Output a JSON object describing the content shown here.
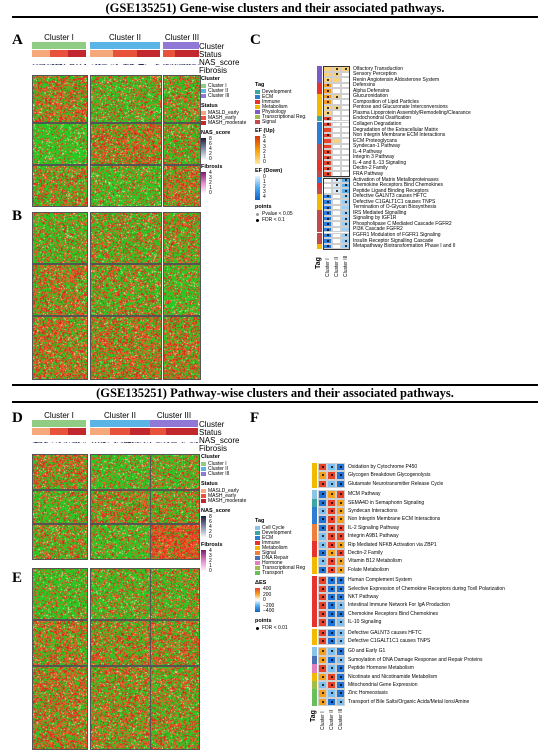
{
  "titles": {
    "top": "(GSE135251) Gene-wise clusters and their associated pathways.",
    "bottom": "(GSE135251) Pathway-wise clusters and their associated pathways."
  },
  "panels": {
    "a": "A",
    "b": "B",
    "c": "C",
    "d": "D",
    "e": "E",
    "f": "F"
  },
  "annotation_rows": {
    "cluster": "Cluster",
    "status": "Status",
    "nas": "NAS_score",
    "fibrosis": "Fibrosis"
  },
  "clusters": {
    "c1": "Cluster I",
    "c2": "Cluster II",
    "c3": "Cluster III"
  },
  "legend": {
    "cluster_title": "Cluster",
    "cluster_items": [
      "Cluster I",
      "Cluster II",
      "Cluster III"
    ],
    "status_title": "Status",
    "status_items": [
      "MASLD_early",
      "MASH_early",
      "MASH_moderate"
    ],
    "nas_title": "NAS_score",
    "nas_ticks": [
      "8",
      "6",
      "4",
      "2",
      "0"
    ],
    "fib_title": "Fibrosis",
    "fib_ticks": [
      "4",
      "3",
      "2",
      "1",
      "0"
    ]
  },
  "colors": {
    "c1": "#90cc84",
    "c2": "#5bb4e6",
    "c3": "#8f78d6",
    "s1": "#f5a97a",
    "s2": "#e8523a",
    "s3": "#c1272d",
    "green": "#22cc22",
    "red": "#e02020"
  },
  "c_legend": {
    "tag_title": "Tag",
    "tags": [
      "Development",
      "ECM",
      "Immune",
      "Metabolism",
      "Physiology",
      "Transcriptional Reg.",
      "Signal"
    ],
    "ef_up_title": "EF (Up)",
    "ef_up_ticks": [
      "5",
      "4",
      "3",
      "2",
      "1",
      "0"
    ],
    "ef_down_title": "EF (Down)",
    "ef_down_ticks": [
      "0",
      "1",
      "2",
      "3",
      "4"
    ],
    "points_title": "points",
    "points": [
      "Pvalue < 0.05",
      "FDR < 0.1"
    ],
    "x_labels": [
      "Cluster I",
      "Cluster II",
      "Cluster III"
    ],
    "tag_axis": "Tag"
  },
  "c_paths": [
    "Olfactory Transduction",
    "Sensory Perception",
    "Renin Angiotensin Aldosterone System",
    "Defensins",
    "Alpha Defensins",
    "Glucuronidation",
    "Composition of Lipid Particles",
    "Pentose and Glucuronate Interconversions",
    "Plasma Lipoprotein Assembly/Remodeling/Clearance",
    "Endochondral Ossification",
    "Collagen Degradation",
    "Degradation of the Extracellular Matrix",
    "Non Integrin Membrane ECM Interactions",
    "ECM Proteoglycans",
    "Syndecan-1 Pathway",
    "IL-4 Pathway",
    "Integrin 3 Pathway",
    "IL-4 and IL-13 Signaling",
    "Dectin-2 Family",
    "FRA Pathway",
    "Activation of Matrix Metalloproteinases",
    "Chemokine Receptors Bind Chemokines",
    "Peptide Ligand Binding Receptors",
    "Defective GALNT3 causes HFTC",
    "Defective C1GALT1C1 causes TNPS",
    "Termination of O-Glycan Biosynthesis",
    "IRS Mediated Signalling",
    "Signaling by IGF1R",
    "Phospholipase C Mediated Cascade FGFR2",
    "PI3K Cascade FGFR2",
    "FGFR1 Modulation of FGFR1 Signaling",
    "Insulin Receptor Signalling Cascade",
    "Metapathway Biotransformation Phase I and II"
  ],
  "f_legend": {
    "tag_title": "Tag",
    "tags": [
      "Cell Cycle",
      "Development",
      "ECM",
      "Immune",
      "Metabolism",
      "Signal",
      "DNA Repair",
      "Hormone",
      "Transcriptional Reg",
      "Transport"
    ],
    "es_title": "ΔES",
    "es_ticks": [
      "400",
      "200",
      "0",
      "−200",
      "−400"
    ],
    "points_title": "points",
    "points": [
      "FDR < 0.01"
    ],
    "x_labels": [
      "Cluster I",
      "Cluster II",
      "Cluster III"
    ],
    "tag_axis": "Tag"
  },
  "f_paths": [
    "Oxidation by Cytochrome P450",
    "Glycogen Breakdown Glycogenolysis",
    "Glutamate Neurotransmitter Release Cycle",
    "MCM Pathway",
    "SEMA4D in Semaphorin Signaling",
    "Syndecan Interactions",
    "Non Integrin Membrane ECM Interactions",
    "IL-2 Signaling Pathway",
    "Integrin A9B1 Pathway",
    "Rip Mediated NFKB Activation via ZBP1",
    "Dectin-2 Family",
    "Vitamin B12 Metabolism",
    "Folate Metabolism",
    "Human Complement System",
    "Selective Expression of Chemokine Receptors during Tcell Polarization",
    "NKT Pathway",
    "Intestinal Immune Network For IgA Production",
    "Chemokine Receptors Bind Chemokines",
    "IL-10 Signaling",
    "Defective GALNT3 causes HFTC",
    "Defective C1GALT1C1 causes TNPS",
    "G0 and Early G1",
    "Sumoylation of DNA Damage Response and Repair Proteins",
    "Peptide Hormone Metabolism",
    "Nicotinate and Nicotinamide Metabolism",
    "Mitochondrial Gene Expression",
    "Zinc Homeostasis",
    "Transport of Bile Salts/Organic Acids/Metal Ions/Amine"
  ]
}
